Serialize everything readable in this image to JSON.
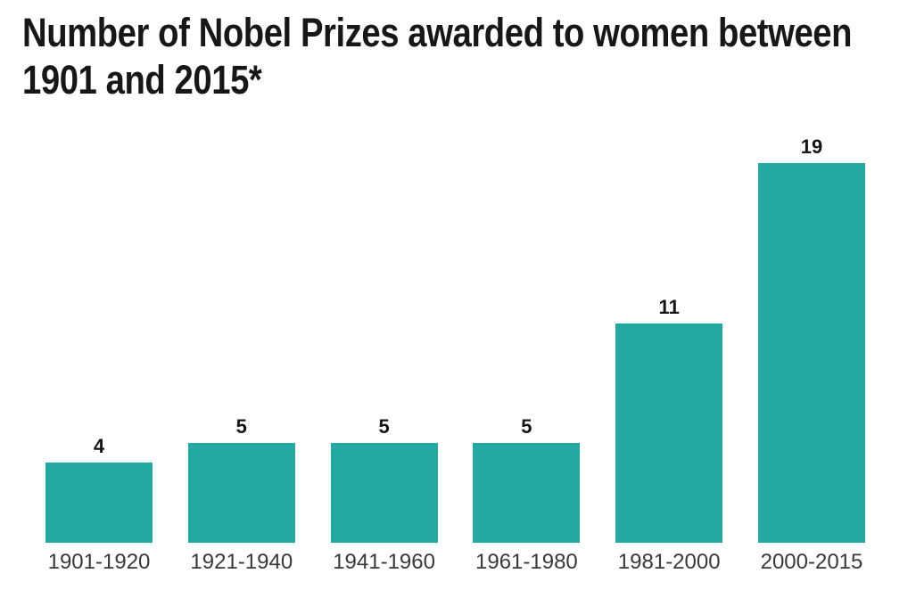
{
  "page": {
    "background": "#ffffff"
  },
  "chart_data": {
    "type": "bar",
    "title": "Number of Nobel Prizes awarded to women between 1901 and 2015*",
    "title_lines": [
      "Number of Nobel Prizes awarded to women between",
      "1901 and 2015*"
    ],
    "categories": [
      "1901-1920",
      "1921-1940",
      "1941-1960",
      "1961-1980",
      "1981-2000",
      "2000-2015"
    ],
    "values": [
      4,
      5,
      5,
      5,
      11,
      19
    ],
    "data_labels": [
      4,
      5,
      5,
      5,
      11,
      19
    ],
    "xlabel": "",
    "ylabel": "",
    "ylim": [
      0,
      19
    ],
    "grid": false,
    "legend": false,
    "axes_visible": false,
    "value_labels_position": "above-bars",
    "colors": {
      "bar": "#23a8a3",
      "value_label": "#151515",
      "category_label": "#38383d",
      "title": "#171717",
      "background": "#ffffff"
    }
  }
}
